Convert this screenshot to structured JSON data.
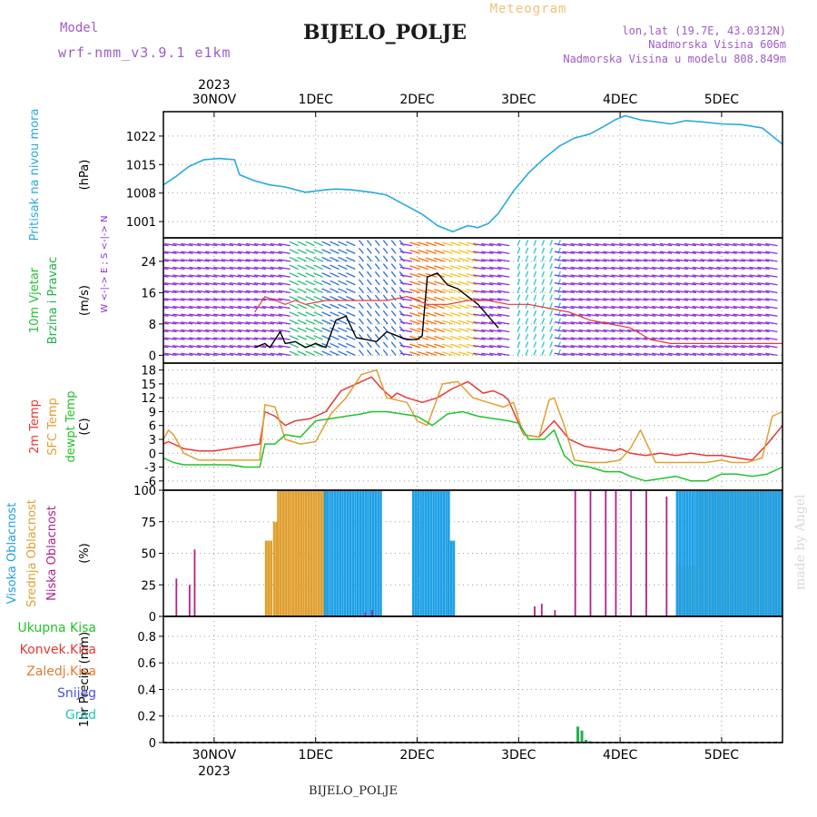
{
  "header": {
    "model_label": "Model",
    "model_name": "wrf-nmm_v3.9.1 e1km",
    "title": "BIJELO_POLJE",
    "subtitle": "Meteogram",
    "lonlat": "lon,lat (19.7E, 43.0312N)",
    "elevation": "Nadmorska Visina 606m",
    "model_elevation": "Nadmorska Visina u modelu 808.849m",
    "footer_title": "BIJELO_POLJE",
    "watermark": "made by Angel"
  },
  "colors": {
    "pressure": "#27a9e1",
    "t2m": "#e53935",
    "sfc": "#e0a030",
    "dew": "#22c22c",
    "high_cloud": "#1ea0e6",
    "mid_cloud": "#e0a030",
    "low_cloud": "#b0228c",
    "total_precip": "#22b04b",
    "header_purple": "#a05cc8",
    "header_orange": "#f0c078",
    "vector_purple": "#8a2be2"
  },
  "chart_data": [
    {
      "type": "line",
      "panel": "pressure",
      "ylabel": "(hPa)",
      "side_labels": [
        "Pritisak na nivou mora"
      ],
      "ylim": [
        997,
        1028
      ],
      "yticks": [
        1001,
        1008,
        1015,
        1022
      ],
      "grid": true,
      "top_year": "2023",
      "x_tick_labels": [
        "30NOV",
        "1DEC",
        "2DEC",
        "3DEC",
        "4DEC",
        "5DEC"
      ],
      "x_tick_days": [
        0.5,
        1.5,
        2.5,
        3.5,
        4.5,
        5.5
      ],
      "xlim": [
        0,
        6.1
      ],
      "series": [
        {
          "color_key": "pressure",
          "x": [
            0,
            0.12,
            0.25,
            0.4,
            0.55,
            0.7,
            0.75,
            0.9,
            1.05,
            1.2,
            1.4,
            1.6,
            1.7,
            1.85,
            2.05,
            2.2,
            2.35,
            2.55,
            2.7,
            2.85,
            3.0,
            3.1,
            3.2,
            3.3,
            3.45,
            3.6,
            3.75,
            3.9,
            4.05,
            4.2,
            4.35,
            4.45,
            4.55,
            4.7,
            4.85,
            5.0,
            5.15,
            5.3,
            5.5,
            5.7,
            5.9,
            6.1
          ],
          "y": [
            1010,
            1012,
            1014.5,
            1016.2,
            1016.5,
            1016.2,
            1012.5,
            1011,
            1010,
            1009.5,
            1008.2,
            1008.8,
            1009,
            1008.8,
            1008.2,
            1007.5,
            1005.5,
            1002.8,
            1000,
            998.5,
            1000,
            999.5,
            1000.5,
            1003,
            1008.5,
            1013,
            1016.5,
            1019.5,
            1021.5,
            1022.5,
            1024.5,
            1026,
            1027,
            1026,
            1025.5,
            1025,
            1025.8,
            1025.5,
            1025,
            1024.8,
            1024,
            1020
          ]
        }
      ]
    },
    {
      "type": "line",
      "panel": "wind",
      "ylabel": "(m/s)",
      "side_labels": [
        "10m Vjetar",
        "Brzina i Pravac"
      ],
      "compass_label": "W <-|-> E ; S <-|-> N",
      "ylim": [
        -2,
        30
      ],
      "yticks": [
        0,
        8,
        16,
        24
      ],
      "grid": true,
      "series": [
        {
          "name": "speed",
          "color": "#000000",
          "x": [
            0.9,
            1.0,
            1.05,
            1.15,
            1.2,
            1.3,
            1.4,
            1.5,
            1.6,
            1.7,
            1.8,
            1.9,
            2.0,
            2.1,
            2.2,
            2.3,
            2.4,
            2.5,
            2.55,
            2.6,
            2.7,
            2.8,
            2.9,
            3.0,
            3.1,
            3.2,
            3.3
          ],
          "y": [
            2,
            3,
            2,
            6,
            3,
            3.5,
            2,
            3,
            2,
            9,
            10,
            4.5,
            4,
            3.5,
            6,
            5,
            4,
            4,
            5,
            20,
            21,
            18,
            17,
            15,
            13,
            10,
            7
          ]
        },
        {
          "name": "gust",
          "color": "#e53935",
          "x": [
            0.9,
            1.0,
            1.1,
            1.2,
            1.3,
            1.4,
            1.6,
            1.8,
            2.0,
            2.2,
            2.4,
            2.6,
            2.8,
            3.0,
            3.2,
            3.4,
            3.6,
            3.8,
            4.0,
            4.2,
            4.4,
            4.6,
            4.8,
            5.0,
            5.2,
            5.4,
            5.6,
            5.8,
            6.0,
            6.1
          ],
          "y": [
            11,
            15,
            14,
            13,
            14,
            13,
            14,
            14,
            14,
            14,
            15,
            13,
            13,
            14,
            14,
            13,
            13,
            12,
            11,
            9,
            8,
            7,
            4,
            3,
            3,
            3,
            3,
            3,
            3,
            3
          ]
        }
      ],
      "arrow_colors": [
        "#8a2be2",
        "#2a6ed8",
        "#1ec8d8",
        "#22c070",
        "#ff6a00",
        "#f0c020"
      ]
    },
    {
      "type": "line",
      "panel": "temperature",
      "ylabel": "(C)",
      "side_labels": [
        "2m Temp",
        "SFC Temp",
        "dewpt Temp"
      ],
      "ylim": [
        -8,
        19.5
      ],
      "yticks": [
        -6,
        -3,
        0,
        3,
        6,
        9,
        12,
        15,
        18
      ],
      "grid": true,
      "series": [
        {
          "color_key": "t2m",
          "x": [
            0,
            0.05,
            0.2,
            0.35,
            0.5,
            0.65,
            0.8,
            0.95,
            1.0,
            1.1,
            1.2,
            1.3,
            1.45,
            1.6,
            1.75,
            1.9,
            2.05,
            2.15,
            2.25,
            2.3,
            2.4,
            2.55,
            2.7,
            2.85,
            3.0,
            3.15,
            3.25,
            3.35,
            3.4,
            3.55,
            3.7,
            3.85,
            4.0,
            4.15,
            4.3,
            4.45,
            4.5,
            4.6,
            4.75,
            4.9,
            5.05,
            5.2,
            5.35,
            5.5,
            5.65,
            5.8,
            5.95,
            6.1
          ],
          "y": [
            2,
            2.5,
            1,
            0.5,
            0.5,
            1,
            1.5,
            2,
            9,
            8,
            6,
            7,
            7.5,
            9,
            13.5,
            15,
            16.5,
            14,
            12,
            13,
            12,
            11,
            12,
            14,
            15.5,
            13,
            13.5,
            12.5,
            11.5,
            4,
            3.5,
            7,
            3,
            1.5,
            1,
            0.5,
            1,
            0,
            -0.5,
            0,
            -0.5,
            0,
            -0.5,
            -0.5,
            -1,
            -1.5,
            2,
            6
          ]
        },
        {
          "color_key": "sfc",
          "x": [
            0,
            0.05,
            0.1,
            0.2,
            0.35,
            0.5,
            0.65,
            0.8,
            0.95,
            1.0,
            1.1,
            1.2,
            1.35,
            1.5,
            1.65,
            1.8,
            1.95,
            2.1,
            2.2,
            2.3,
            2.4,
            2.5,
            2.6,
            2.75,
            2.9,
            3.05,
            3.2,
            3.35,
            3.45,
            3.55,
            3.7,
            3.8,
            3.85,
            3.95,
            4.05,
            4.2,
            4.35,
            4.5,
            4.6,
            4.7,
            4.85,
            5.0,
            5.1,
            5.2,
            5.35,
            5.5,
            5.6,
            5.75,
            5.9,
            6.0,
            6.1
          ],
          "y": [
            3,
            5,
            4,
            0,
            -1.5,
            -1.5,
            -1.5,
            -1.5,
            -1.5,
            10.5,
            10,
            3,
            2,
            2.5,
            8.5,
            12,
            17,
            18,
            12,
            11.5,
            11,
            7,
            6,
            15,
            15.5,
            12,
            11,
            10,
            11,
            4,
            3.5,
            11.5,
            12,
            6,
            -1.5,
            -2,
            -2,
            -1.5,
            1,
            5,
            -2,
            -2,
            -2,
            -2,
            -2,
            -1.5,
            -2,
            -2,
            -1,
            8,
            9
          ]
        },
        {
          "color_key": "dew",
          "x": [
            0,
            0.1,
            0.2,
            0.35,
            0.5,
            0.65,
            0.8,
            0.95,
            1.0,
            1.1,
            1.2,
            1.35,
            1.5,
            1.65,
            1.8,
            1.95,
            2.05,
            2.2,
            2.35,
            2.5,
            2.65,
            2.8,
            2.95,
            3.1,
            3.25,
            3.4,
            3.5,
            3.6,
            3.75,
            3.85,
            3.95,
            4.05,
            4.2,
            4.35,
            4.5,
            4.6,
            4.75,
            4.9,
            5.05,
            5.2,
            5.35,
            5.5,
            5.65,
            5.8,
            5.95,
            6.1
          ],
          "y": [
            -1,
            -2,
            -2.5,
            -2.5,
            -2.5,
            -2.5,
            -3,
            -3,
            2,
            2,
            4,
            3.5,
            7,
            7.5,
            8,
            8.5,
            9,
            9,
            8.5,
            8,
            6,
            8.5,
            9,
            8,
            7.5,
            7,
            6.5,
            3,
            3,
            5,
            -0.5,
            -2.5,
            -3,
            -4,
            -4,
            -5,
            -6,
            -5.5,
            -5,
            -6,
            -6,
            -4.5,
            -4.5,
            -5,
            -4.5,
            -3
          ]
        }
      ]
    },
    {
      "type": "bar",
      "panel": "cloud",
      "ylabel": "(%)",
      "side_labels": [
        "Visoka Oblacnost",
        "Srednja Oblacnost",
        "Niska Oblacnost"
      ],
      "ylim": [
        0,
        100
      ],
      "yticks": [
        0,
        25,
        50,
        75,
        100
      ],
      "grid": true,
      "high_blocks": [
        {
          "from": 1.58,
          "to": 1.62,
          "value": 100
        },
        {
          "from": 1.63,
          "to": 2.15,
          "value": 100
        },
        {
          "from": 2.45,
          "to": 2.8,
          "value": 100
        },
        {
          "from": 2.8,
          "to": 2.85,
          "value": 60
        },
        {
          "from": 5.05,
          "to": 6.1,
          "value": 100
        }
      ],
      "mid_blocks": [
        {
          "from": 1.0,
          "to": 1.05,
          "value": 60
        },
        {
          "from": 1.08,
          "to": 1.12,
          "value": 75
        },
        {
          "from": 1.12,
          "to": 1.6,
          "value": 100
        },
        {
          "from": 5.05,
          "to": 5.25,
          "value": 40
        },
        {
          "from": 5.25,
          "to": 6.1,
          "value": 100
        }
      ],
      "low_spikes": [
        {
          "x": 0.12,
          "value": 30
        },
        {
          "x": 0.25,
          "value": 25
        },
        {
          "x": 0.3,
          "value": 53
        },
        {
          "x": 1.98,
          "value": 3
        },
        {
          "x": 2.05,
          "value": 5
        },
        {
          "x": 3.65,
          "value": 8
        },
        {
          "x": 3.72,
          "value": 10
        },
        {
          "x": 3.85,
          "value": 5
        },
        {
          "x": 4.05,
          "value": 100
        },
        {
          "x": 4.2,
          "value": 100
        },
        {
          "x": 4.35,
          "value": 100
        },
        {
          "x": 4.45,
          "value": 100
        },
        {
          "x": 4.6,
          "value": 100
        },
        {
          "x": 4.75,
          "value": 100
        },
        {
          "x": 4.95,
          "value": 95
        }
      ]
    },
    {
      "type": "bar",
      "panel": "precipitation",
      "ylabel": "1hr Precip (mm)",
      "side_labels": [
        "Ukupna Kisa",
        "Konvek.Kisa",
        "Zaledj.Kisa",
        "Snijeg",
        "Grad"
      ],
      "side_colors": [
        "#22c22c",
        "#e53935",
        "#e87a30",
        "#5050e0",
        "#22c8b0"
      ],
      "ylim": [
        0,
        0.95
      ],
      "yticks": [
        0,
        0.2,
        0.4,
        0.6,
        0.8
      ],
      "grid": true,
      "bottom_year": "2023",
      "bars": [
        {
          "x": 4.07,
          "value": 0.12
        },
        {
          "x": 4.11,
          "value": 0.09
        },
        {
          "x": 4.15,
          "value": 0.02
        },
        {
          "x": 4.19,
          "value": 0.01
        }
      ]
    }
  ]
}
